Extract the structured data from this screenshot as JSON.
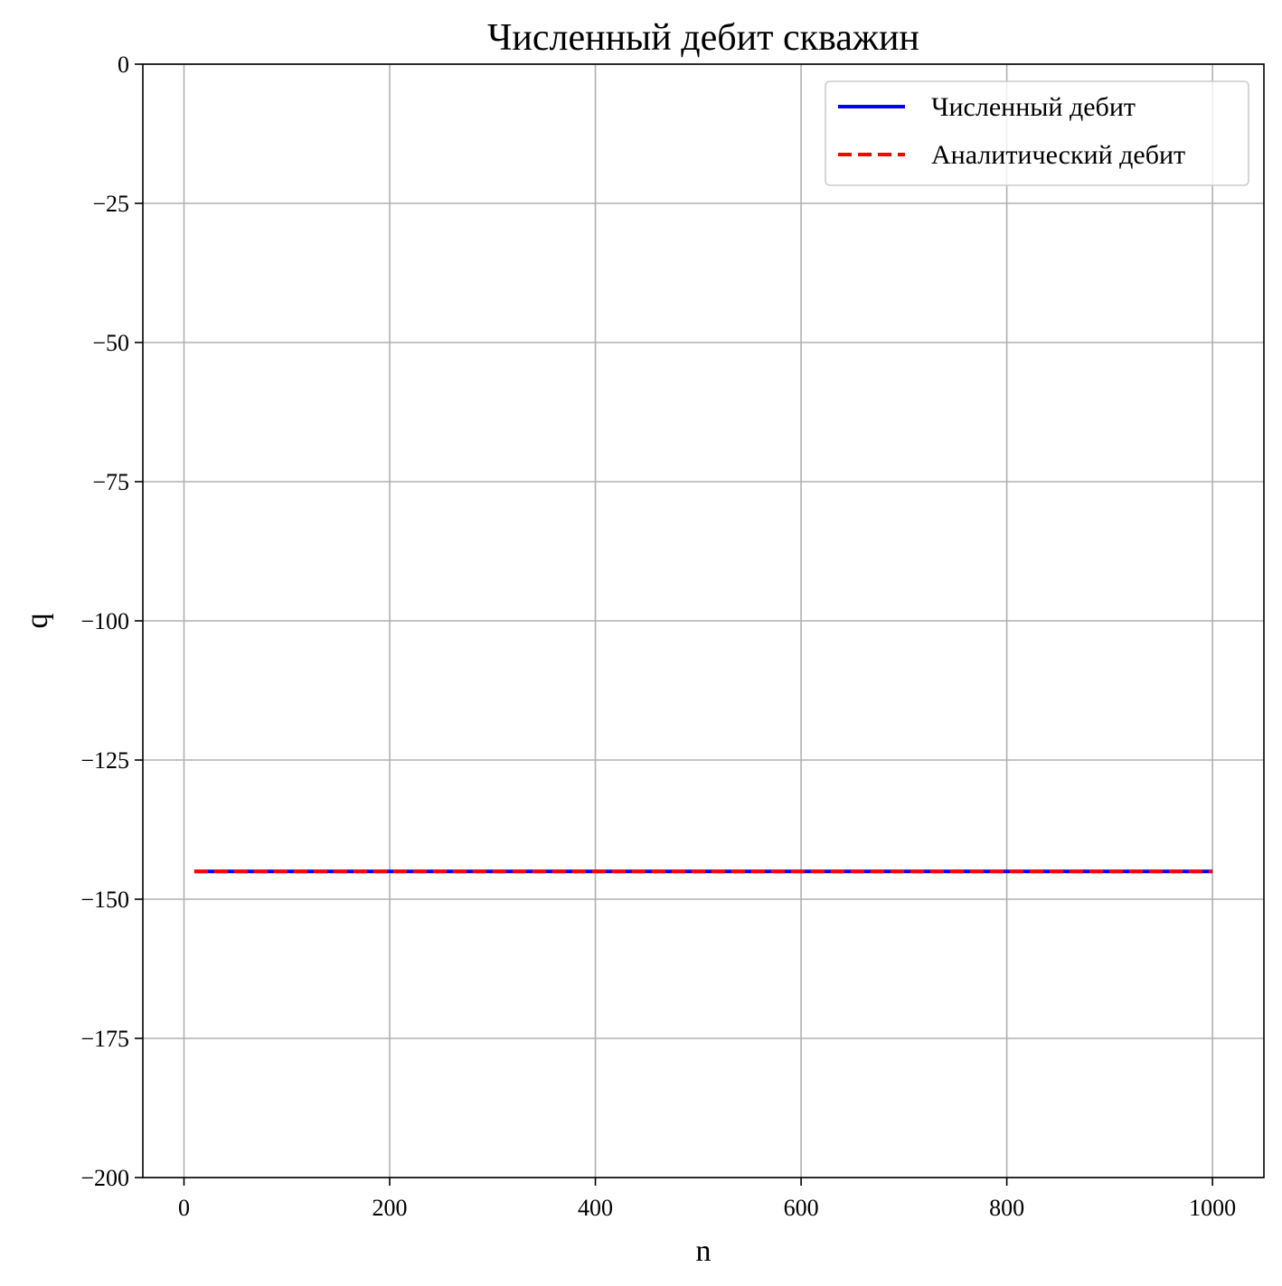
{
  "chart_data": {
    "type": "line",
    "title": "Численный дебит скважин",
    "xlabel": "n",
    "ylabel": "q",
    "xlim": [
      -40,
      1050
    ],
    "ylim": [
      -200,
      0
    ],
    "xticks": [
      0,
      200,
      400,
      600,
      800,
      1000
    ],
    "xtick_labels": [
      "0",
      "200",
      "400",
      "600",
      "800",
      "1000"
    ],
    "yticks": [
      0,
      -25,
      -50,
      -75,
      -100,
      -125,
      -150,
      -175,
      -200
    ],
    "ytick_labels": [
      "0",
      "−25",
      "−50",
      "−75",
      "−100",
      "−125",
      "−150",
      "−175",
      "−200"
    ],
    "grid": true,
    "legend_position": "top-right",
    "series": [
      {
        "name": "Численный дебит",
        "color": "#0000ff",
        "style": "solid",
        "x": [
          10,
          1000
        ],
        "y": [
          -145,
          -145
        ]
      },
      {
        "name": "Аналитический дебит",
        "color": "#ff0000",
        "style": "dashed",
        "x": [
          10,
          1000
        ],
        "y": [
          -145,
          -145
        ]
      }
    ]
  }
}
